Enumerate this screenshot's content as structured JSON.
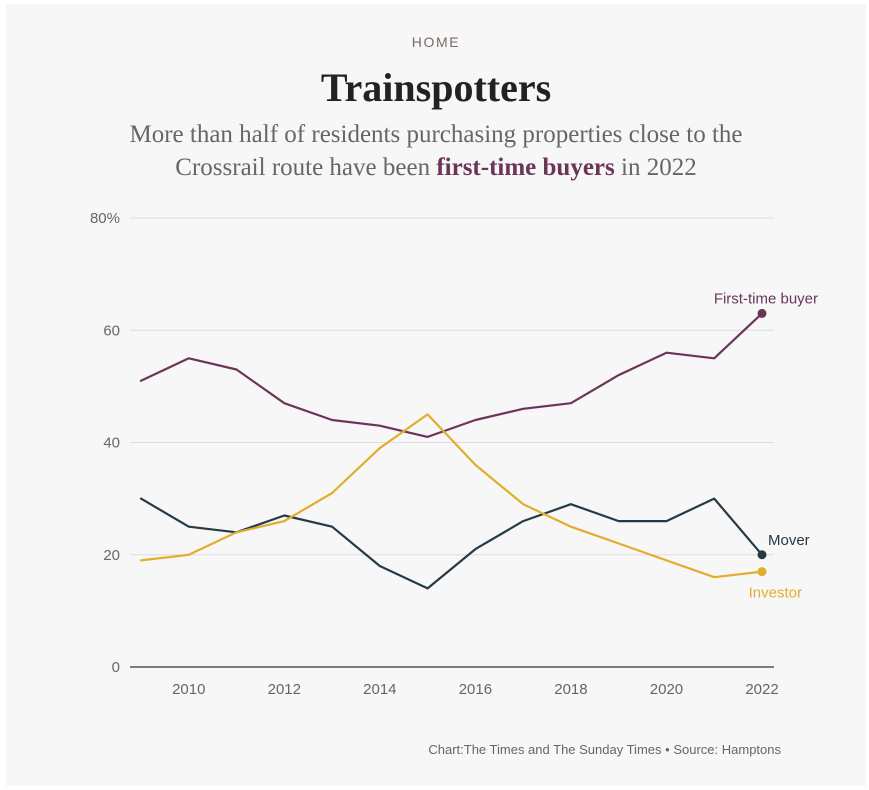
{
  "header": {
    "section": "HOME",
    "title": "Trainspotters",
    "subtitle_line1": "More than half of residents purchasing properties close to the",
    "subtitle_line2_before": "Crossrail route have been",
    "subtitle_highlight": "first-time buyers",
    "subtitle_line2_after": "in 2022"
  },
  "footer": {
    "chart_credit": "Chart:The Times and The Sunday Times",
    "separator": "•",
    "source": "Source: Hamptons"
  },
  "colors": {
    "first_time_buyer": "#6b3558",
    "mover": "#263a45",
    "investor": "#e3ad2c"
  },
  "chart_data": {
    "type": "line",
    "title": "Trainspotters",
    "xlabel": "",
    "ylabel": "",
    "x": [
      2009,
      2010,
      2011,
      2012,
      2013,
      2014,
      2015,
      2016,
      2017,
      2018,
      2019,
      2020,
      2021,
      2022
    ],
    "xlim": [
      2009,
      2022
    ],
    "ylim": [
      0,
      80
    ],
    "y_ticks": [
      {
        "value": 0,
        "label": "0"
      },
      {
        "value": 20,
        "label": "20"
      },
      {
        "value": 40,
        "label": "40"
      },
      {
        "value": 60,
        "label": "60"
      },
      {
        "value": 80,
        "label": "80%"
      }
    ],
    "x_ticks": [
      {
        "value": 2010,
        "label": "2010"
      },
      {
        "value": 2012,
        "label": "2012"
      },
      {
        "value": 2014,
        "label": "2014"
      },
      {
        "value": 2016,
        "label": "2016"
      },
      {
        "value": 2018,
        "label": "2018"
      },
      {
        "value": 2020,
        "label": "2020"
      },
      {
        "value": 2022,
        "label": "2022"
      }
    ],
    "series": [
      {
        "key": "first-time-buyer",
        "name": "First-time buyer",
        "color": "#6b3558",
        "label_position": "above-end",
        "values": [
          51,
          55,
          53,
          47,
          44,
          43,
          41,
          44,
          46,
          47,
          52,
          56,
          55,
          63
        ]
      },
      {
        "key": "mover",
        "name": "Mover",
        "color": "#263a45",
        "label_position": "right-above-end",
        "values": [
          30,
          25,
          24,
          27,
          25,
          18,
          14,
          21,
          26,
          29,
          26,
          26,
          30,
          20
        ]
      },
      {
        "key": "investor",
        "name": "Investor",
        "color": "#e3ad2c",
        "label_position": "below-end",
        "values": [
          19,
          20,
          24,
          26,
          31,
          39,
          45,
          36,
          29,
          25,
          22,
          19,
          16,
          17
        ]
      }
    ]
  }
}
